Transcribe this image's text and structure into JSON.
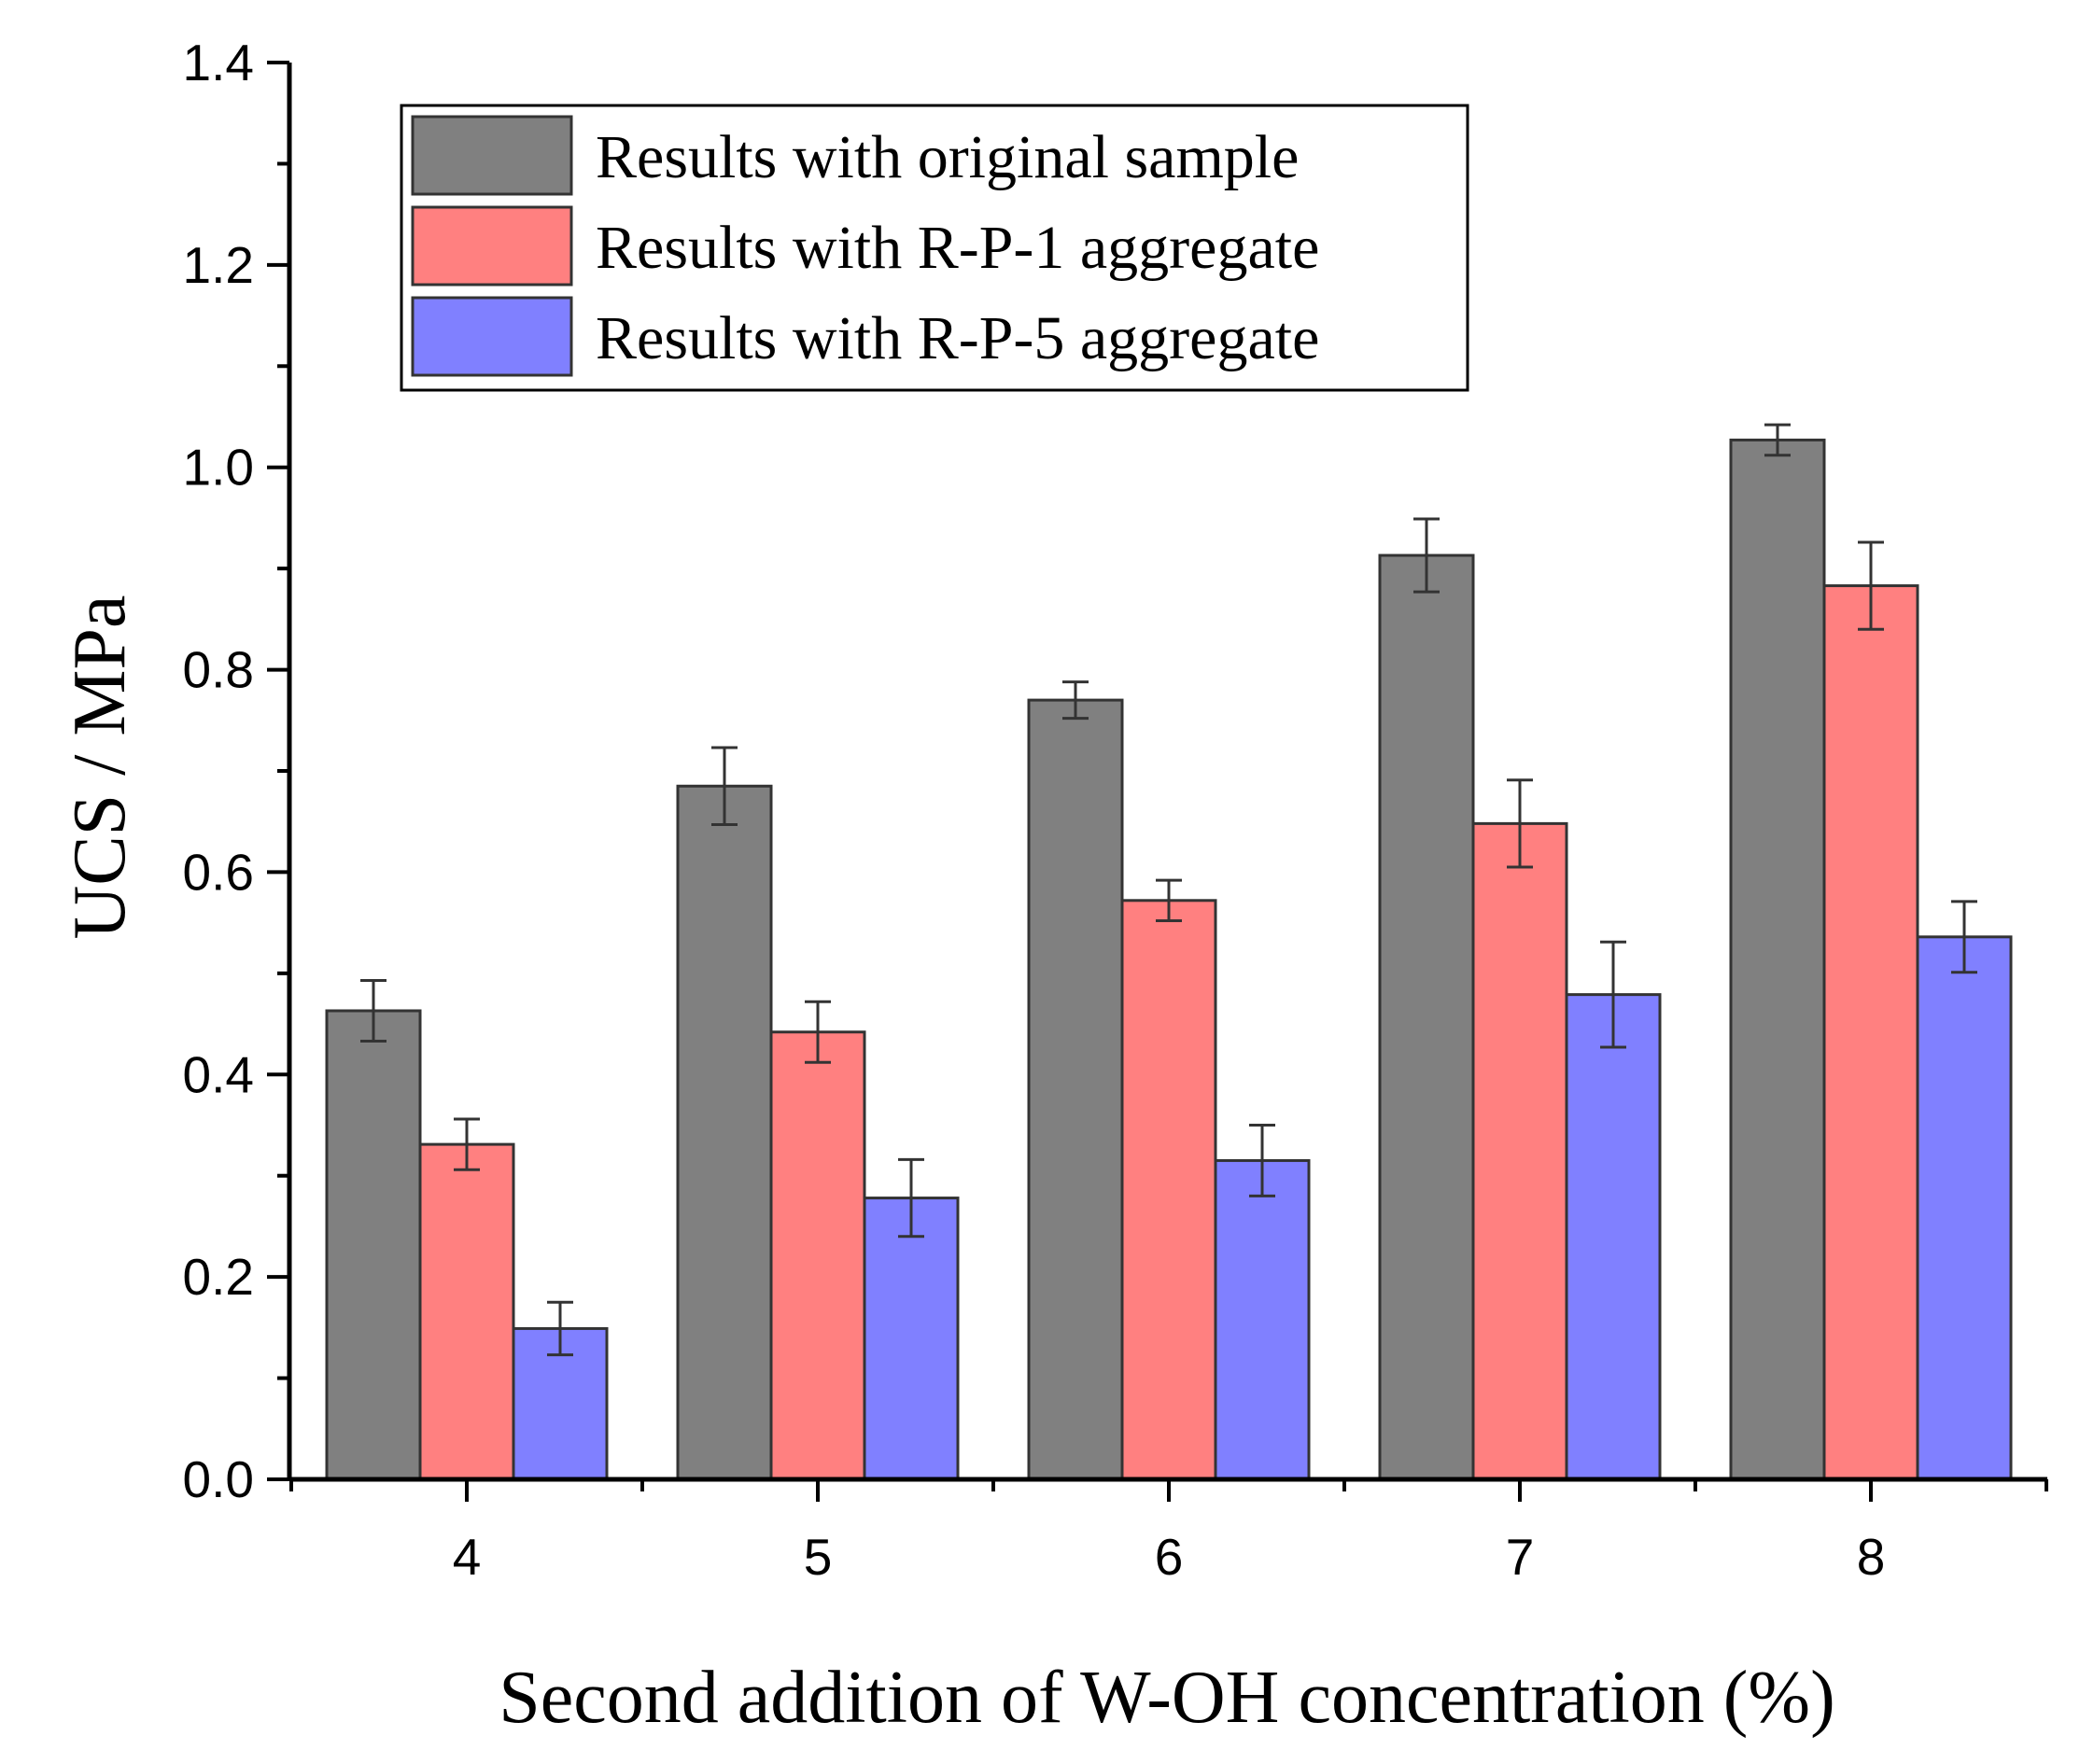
{
  "chart_data": {
    "type": "bar",
    "title": "",
    "xlabel": "Second addition of W-OH concentration (%)",
    "ylabel": "UCS / MPa",
    "categories": [
      "4",
      "5",
      "6",
      "7",
      "8"
    ],
    "ylim": [
      0,
      1.4
    ],
    "yticks": [
      "0.0",
      "0.2",
      "0.4",
      "0.6",
      "0.8",
      "1.0",
      "1.2",
      "1.4"
    ],
    "ytick_values": [
      0,
      0.2,
      0.4,
      0.6,
      0.8,
      1.0,
      1.2,
      1.4
    ],
    "grid": false,
    "legend_position": "top-left",
    "series": [
      {
        "name": "Results with original sample",
        "color": "#808080",
        "values": [
          0.463,
          0.685,
          0.77,
          0.913,
          1.027
        ],
        "errors": [
          0.03,
          0.038,
          0.018,
          0.036,
          0.015
        ]
      },
      {
        "name": "Results with R-P-1 aggregate",
        "color": "#FF8080",
        "values": [
          0.331,
          0.442,
          0.572,
          0.648,
          0.883
        ],
        "errors": [
          0.025,
          0.03,
          0.02,
          0.043,
          0.043
        ]
      },
      {
        "name": "Results with R-P-5 aggregate",
        "color": "#8080FF",
        "values": [
          0.149,
          0.278,
          0.315,
          0.479,
          0.536
        ],
        "errors": [
          0.026,
          0.038,
          0.035,
          0.052,
          0.035
        ]
      }
    ]
  }
}
